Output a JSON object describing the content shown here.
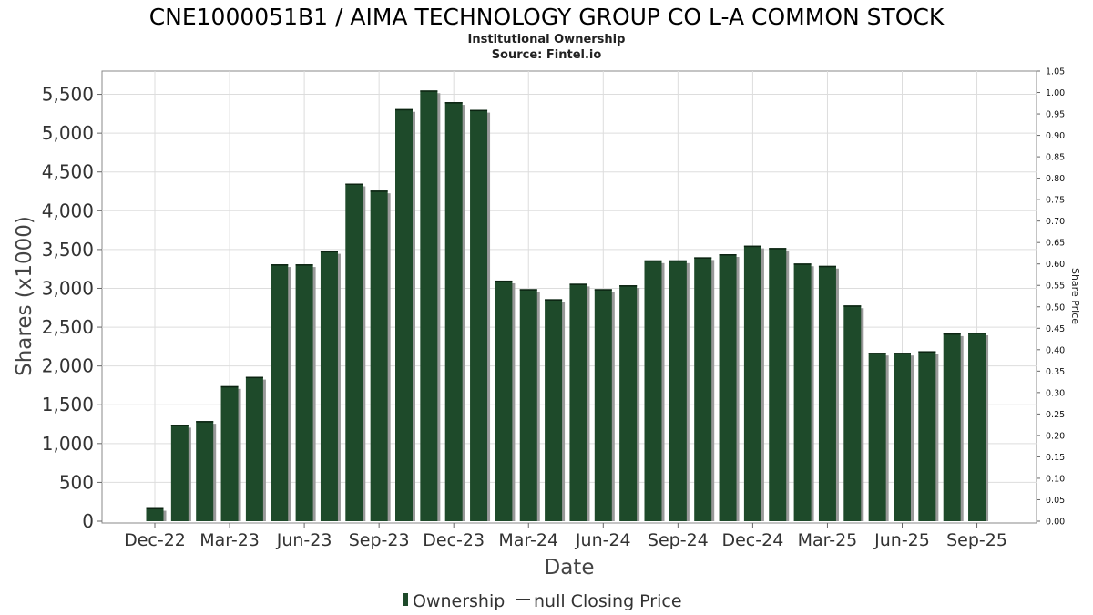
{
  "chart_data": {
    "type": "bar",
    "title": "CNE1000051B1 / AIMA TECHNOLOGY GROUP CO L-A COMMON STOCK",
    "subtitle_lines": [
      "Institutional Ownership",
      "Source: Fintel.io"
    ],
    "xlabel": "Date",
    "ylabel": "Shares (x1000)",
    "y2label": "Share Price",
    "ylim": [
      0,
      5800
    ],
    "y2lim": [
      0,
      1.05
    ],
    "yticks": [
      "0",
      "500",
      "1,000",
      "1,500",
      "2,000",
      "2,500",
      "3,000",
      "3,500",
      "4,000",
      "4,500",
      "5,000",
      "5,500"
    ],
    "y2ticks": [
      "0.00",
      "0.05",
      "0.10",
      "0.15",
      "0.20",
      "0.25",
      "0.30",
      "0.35",
      "0.40",
      "0.45",
      "0.50",
      "0.55",
      "0.60",
      "0.65",
      "0.70",
      "0.75",
      "0.80",
      "0.85",
      "0.90",
      "0.95",
      "1.00",
      "1.05"
    ],
    "xticks": [
      "Dec-22",
      "Mar-23",
      "Jun-23",
      "Sep-23",
      "Dec-23",
      "Mar-24",
      "Jun-24",
      "Sep-24",
      "Dec-24",
      "Mar-25",
      "Jun-25",
      "Sep-25"
    ],
    "grid": true,
    "legend_position": "bottom",
    "colors": {
      "bar": "#1e4a2a",
      "bar_shadow": "#999999",
      "grid": "#dddddd"
    },
    "series": [
      {
        "name": "Ownership",
        "values": [
          170,
          1240,
          1290,
          1740,
          1860,
          3310,
          3310,
          3480,
          4350,
          4260,
          5310,
          5550,
          5400,
          5300,
          3100,
          2990,
          2860,
          3060,
          2990,
          3040,
          3360,
          3360,
          3400,
          3440,
          3550,
          3520,
          3320,
          3290,
          2780,
          2170,
          2170,
          2190,
          2420,
          2430
        ]
      }
    ],
    "legend": [
      {
        "label": "Ownership",
        "marker": "bar"
      },
      {
        "label": "null Closing Price",
        "marker": "line"
      }
    ]
  }
}
